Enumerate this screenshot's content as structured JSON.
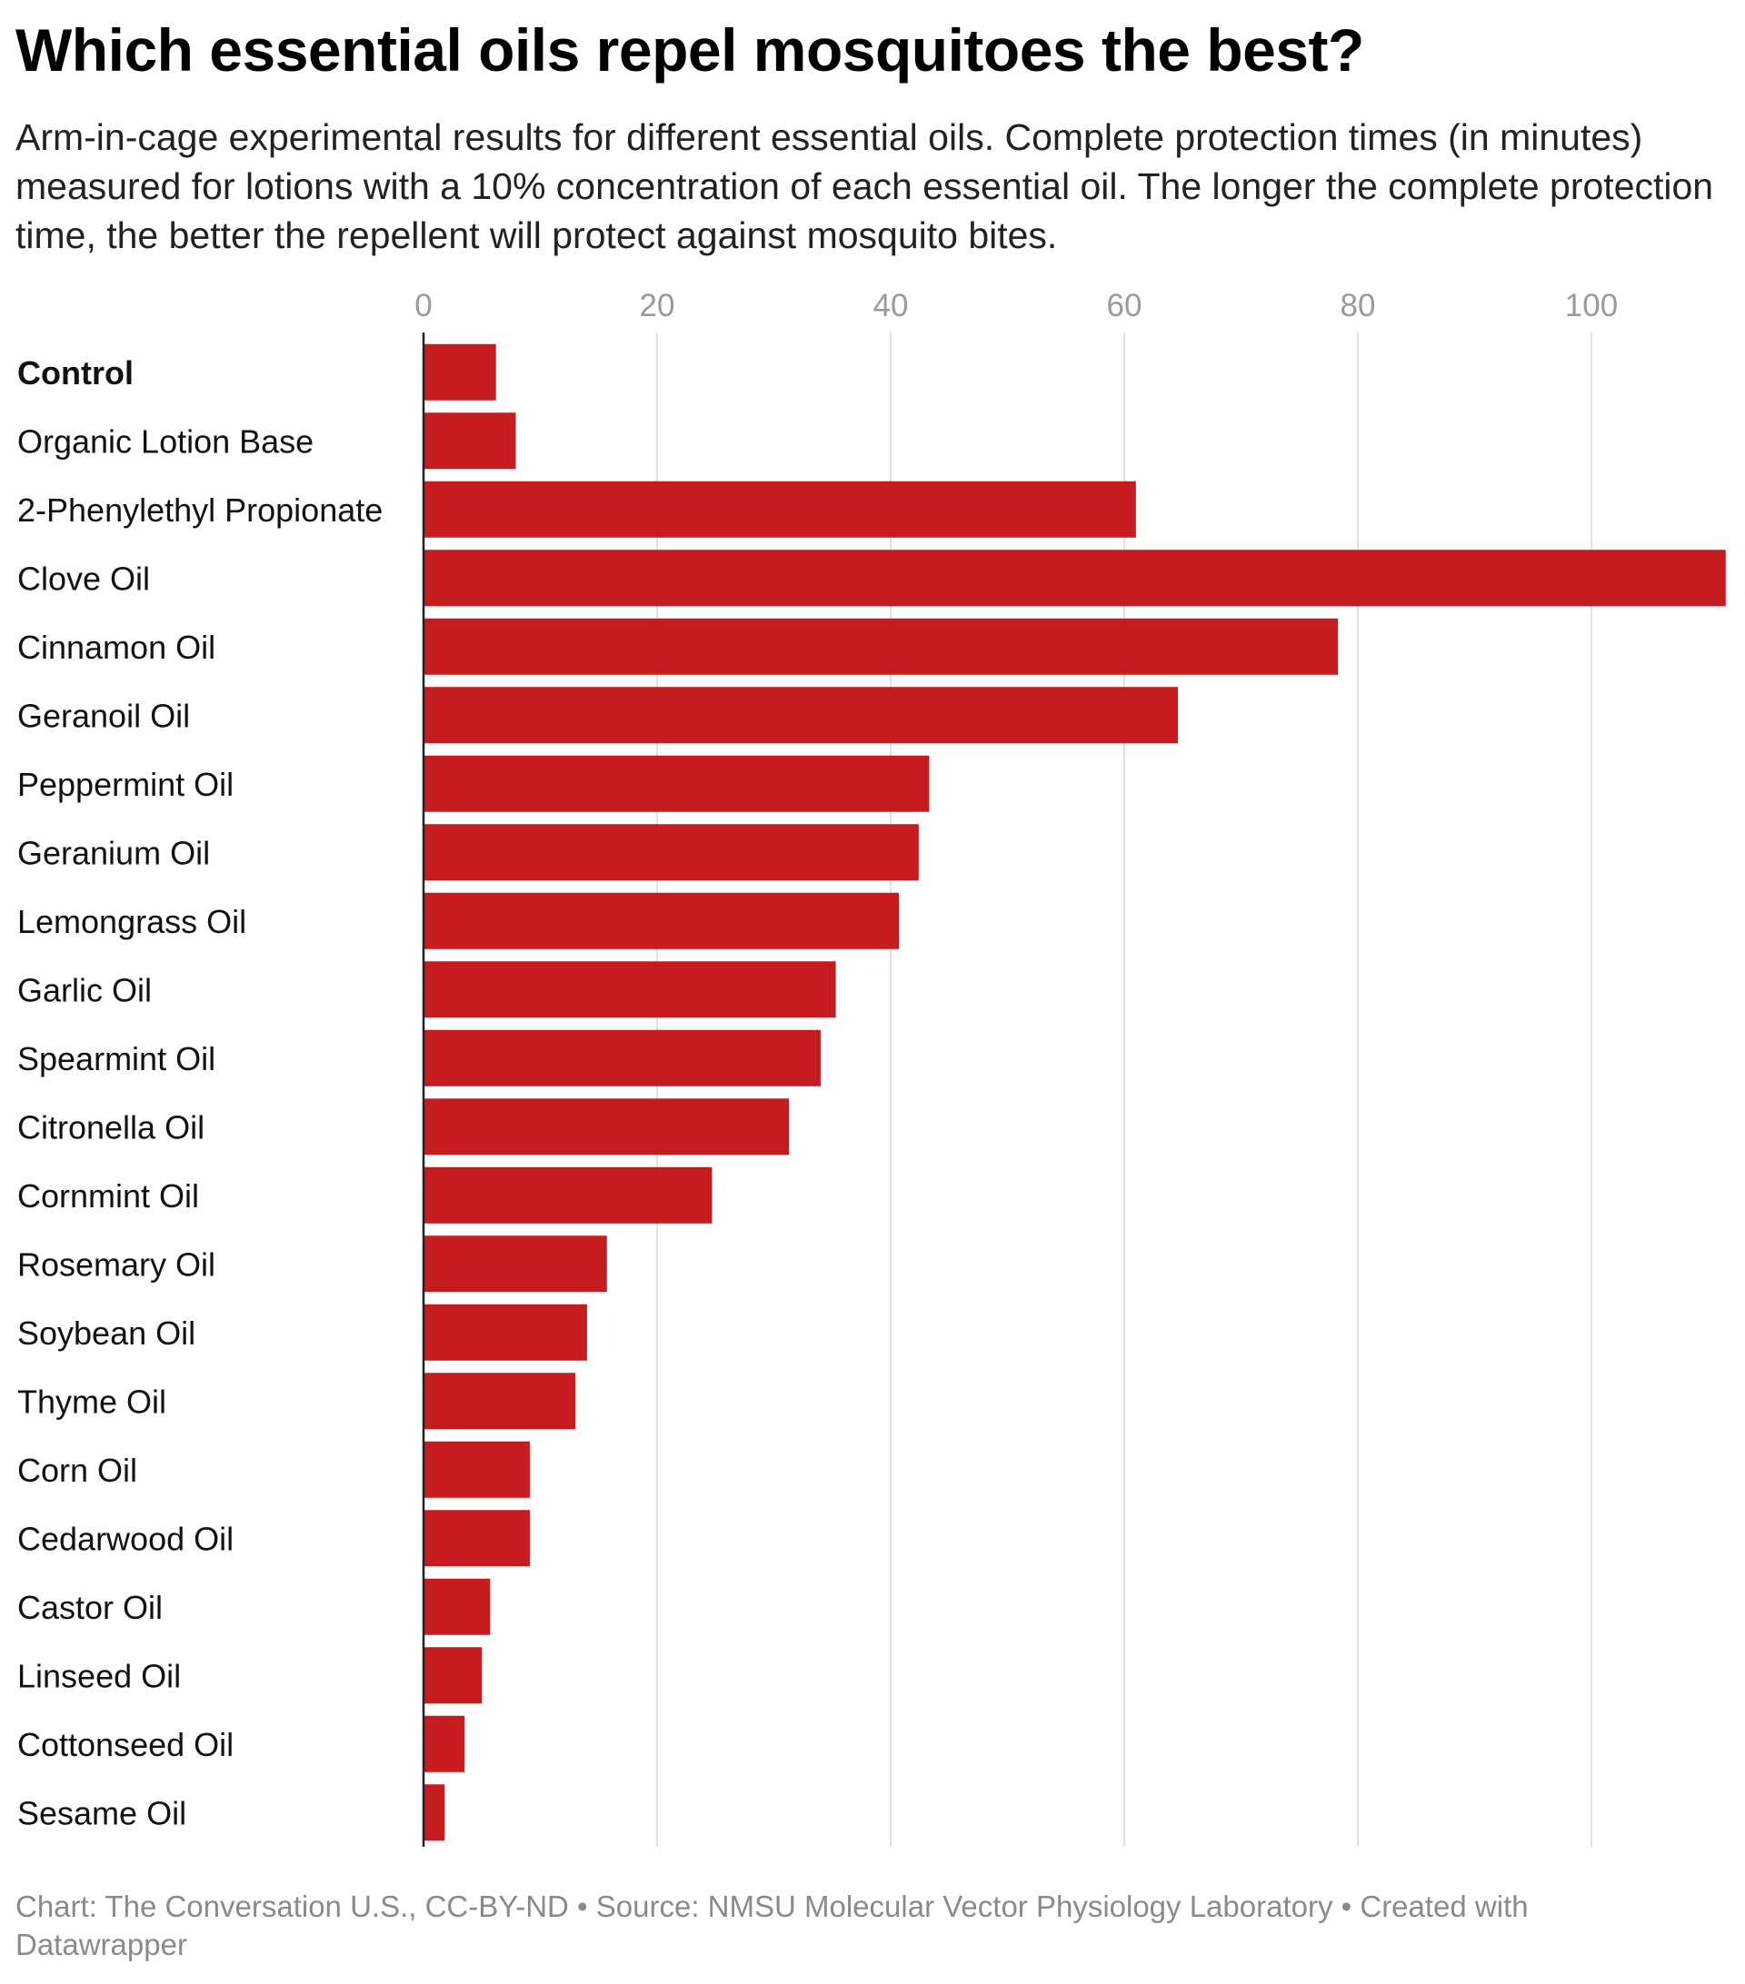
{
  "header": {
    "title": "Which essential oils repel mosquitoes the best?",
    "subtitle": "Arm-in-cage experimental results for different essential oils. Complete protection times (in minutes) measured for lotions with a 10% concentration of each essential oil. The longer the complete protection time, the better the repellent will protect against mosquito bites."
  },
  "footer": {
    "text": "Chart: The Conversation U.S., CC-BY-ND • Source: NMSU Molecular Vector Physiology Laboratory • Created with Datawrapper"
  },
  "chart_data": {
    "type": "bar",
    "orientation": "horizontal",
    "title": "Which essential oils repel mosquitoes the best?",
    "subtitle": "Arm-in-cage experimental results for different essential oils. Complete protection times (in minutes) measured for lotions with a 10% concentration of each essential oil. The longer the complete protection time, the better the repellent will protect against mosquito bites.",
    "xlabel": "",
    "ylabel": "",
    "xlim": [
      0,
      112
    ],
    "x_ticks": [
      0,
      20,
      40,
      60,
      80,
      100
    ],
    "x_tick_labels": [
      "0",
      "20",
      "40",
      "60",
      "80",
      "100"
    ],
    "tick_position": "top",
    "grid": true,
    "legend": "none",
    "bold_categories": [
      "Control"
    ],
    "bar_color": "#c71c1f",
    "categories": [
      "Control",
      "Organic Lotion Base",
      "2-Phenylethyl Propionate",
      "Clove Oil",
      "Cinnamon Oil",
      "Geranoil Oil",
      "Peppermint Oil",
      "Geranium Oil",
      "Lemongrass Oil",
      "Garlic Oil",
      "Spearmint Oil",
      "Citronella Oil",
      "Cornmint Oil",
      "Rosemary Oil",
      "Soybean Oil",
      "Thyme Oil",
      "Corn Oil",
      "Cedarwood Oil",
      "Castor Oil",
      "Linseed Oil",
      "Cottonseed Oil",
      "Sesame Oil"
    ],
    "values": [
      6.2,
      7.9,
      61,
      111.5,
      78.3,
      64.6,
      43.3,
      42.4,
      40.7,
      35.3,
      34,
      31.3,
      24.7,
      15.7,
      14,
      13,
      9.1,
      9.1,
      5.7,
      5,
      3.5,
      1.8
    ]
  }
}
